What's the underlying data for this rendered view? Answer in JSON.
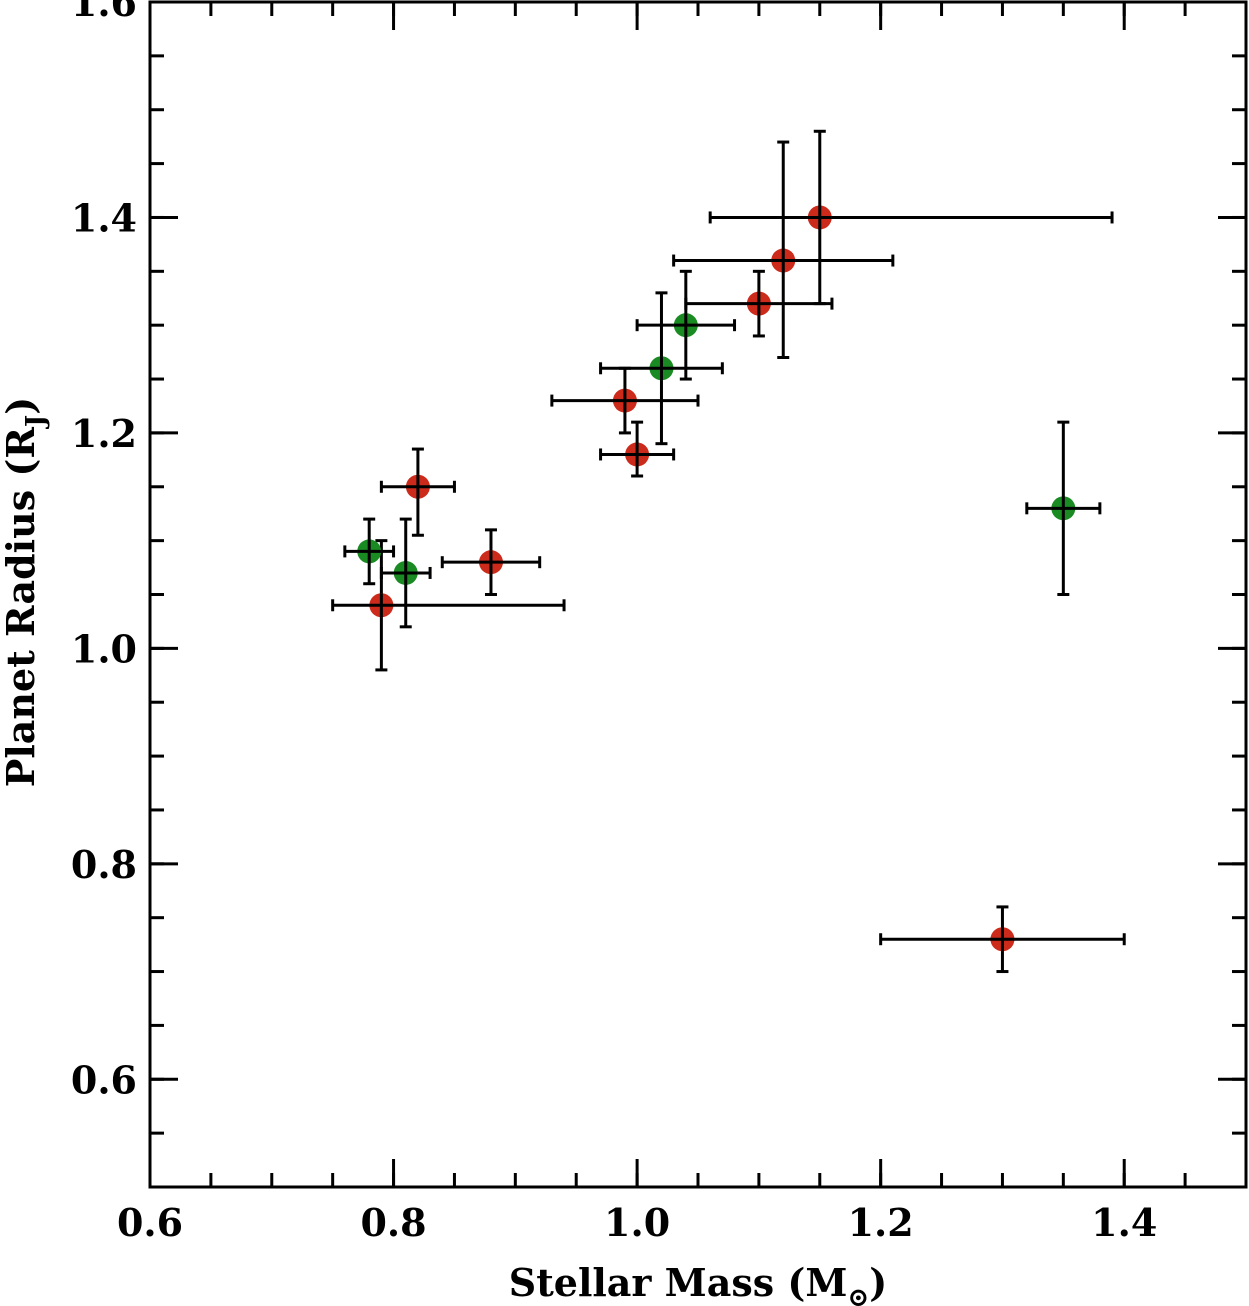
{
  "chart_data": {
    "type": "scatter",
    "xlabel": "Stellar Mass (M",
    "xlabel_sub": "⊙",
    "xlabel_end": ")",
    "ylabel": "Planet Radius (R",
    "ylabel_sub": "J",
    "ylabel_end": ")",
    "xlim": [
      0.6,
      1.5
    ],
    "ylim": [
      0.5,
      1.6
    ],
    "xticks": [
      0.6,
      0.8,
      1.0,
      1.2,
      1.4
    ],
    "xtick_labels": [
      "0.6",
      "0.8",
      "1.0",
      "1.2",
      "1.4"
    ],
    "yticks": [
      0.6,
      0.8,
      1.0,
      1.2,
      1.4,
      1.6
    ],
    "ytick_labels": [
      "0.6",
      "0.8",
      "1.0",
      "1.2",
      "1.4",
      "1.6"
    ],
    "grid": false,
    "series": [
      {
        "color": "#cc2a1a",
        "points": [
          {
            "x": 0.79,
            "y": 1.04,
            "xerr": [
              0.04,
              0.15
            ],
            "yerr": [
              0.06,
              0.06
            ]
          },
          {
            "x": 0.82,
            "y": 1.15,
            "xerr": [
              0.03,
              0.03
            ],
            "yerr": [
              0.045,
              0.035
            ]
          },
          {
            "x": 0.88,
            "y": 1.08,
            "xerr": [
              0.04,
              0.04
            ],
            "yerr": [
              0.03,
              0.03
            ]
          },
          {
            "x": 0.99,
            "y": 1.23,
            "xerr": [
              0.06,
              0.06
            ],
            "yerr": [
              0.03,
              0.03
            ]
          },
          {
            "x": 1.0,
            "y": 1.18,
            "xerr": [
              0.03,
              0.03
            ],
            "yerr": [
              0.02,
              0.03
            ]
          },
          {
            "x": 1.1,
            "y": 1.32,
            "xerr": [
              0.06,
              0.06
            ],
            "yerr": [
              0.03,
              0.03
            ]
          },
          {
            "x": 1.12,
            "y": 1.36,
            "xerr": [
              0.09,
              0.09
            ],
            "yerr": [
              0.09,
              0.11
            ]
          },
          {
            "x": 1.15,
            "y": 1.4,
            "xerr": [
              0.09,
              0.24
            ],
            "yerr": [
              0.08,
              0.08
            ]
          },
          {
            "x": 1.3,
            "y": 0.73,
            "xerr": [
              0.1,
              0.1
            ],
            "yerr": [
              0.03,
              0.03
            ]
          }
        ]
      },
      {
        "color": "#1a8a22",
        "points": [
          {
            "x": 0.78,
            "y": 1.09,
            "xerr": [
              0.02,
              0.02
            ],
            "yerr": [
              0.03,
              0.03
            ]
          },
          {
            "x": 0.81,
            "y": 1.07,
            "xerr": [
              0.02,
              0.02
            ],
            "yerr": [
              0.05,
              0.05
            ]
          },
          {
            "x": 1.02,
            "y": 1.26,
            "xerr": [
              0.05,
              0.05
            ],
            "yerr": [
              0.07,
              0.07
            ]
          },
          {
            "x": 1.04,
            "y": 1.3,
            "xerr": [
              0.04,
              0.04
            ],
            "yerr": [
              0.05,
              0.05
            ]
          },
          {
            "x": 1.35,
            "y": 1.13,
            "xerr": [
              0.03,
              0.03
            ],
            "yerr": [
              0.08,
              0.08
            ]
          }
        ]
      }
    ]
  }
}
